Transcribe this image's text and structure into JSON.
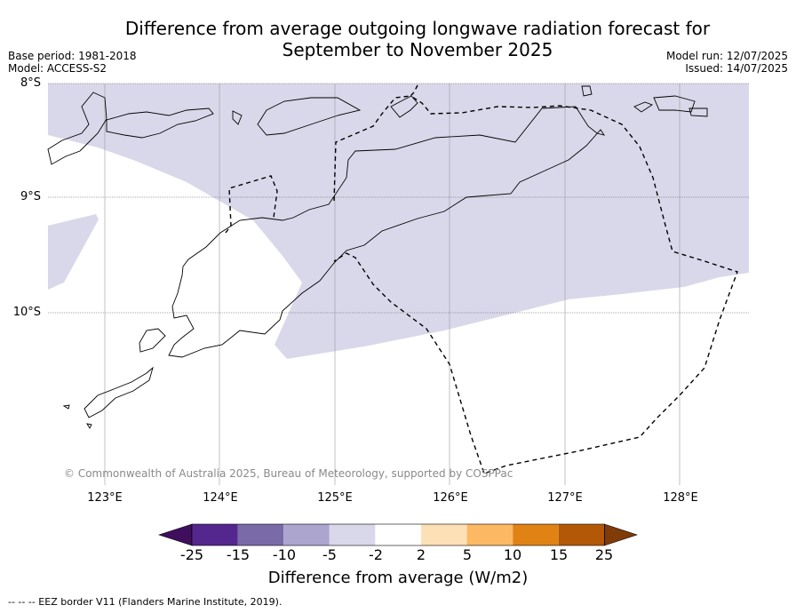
{
  "title_line1": "Difference from average outgoing longwave radiation forecast for",
  "title_line2": "September to November 2025",
  "meta": {
    "base_period": "Base period: 1981-2018",
    "model": "Model: ACCESS-S2",
    "model_run": "Model run: 12/07/2025",
    "issued": "Issued: 14/07/2025"
  },
  "lat_labels": [
    "8°S",
    "9°S",
    "10°S"
  ],
  "lon_labels": [
    "123°E",
    "124°E",
    "125°E",
    "126°E",
    "127°E",
    "128°E"
  ],
  "copyright": "© Commonwealth of Australia 2025, Bureau of Meteorology, supported by COSPPac",
  "colorbar": {
    "title": "Difference from average (W/m2)",
    "ticks": [
      "-25",
      "-15",
      "-10",
      "-5",
      "-2",
      "2",
      "5",
      "10",
      "15",
      "25"
    ],
    "colors": [
      "#3f0f5e",
      "#54278f",
      "#7a6aa8",
      "#aca6cf",
      "#d8d8ea",
      "#ffffff",
      "#fee0b6",
      "#fdb863",
      "#e08214",
      "#b35806",
      "#7f3b08"
    ]
  },
  "anomaly_fill_color": "#d8d8ea",
  "footer": "--  --  -- EEZ border V11 (Flanders Marine Institute, 2019)."
}
